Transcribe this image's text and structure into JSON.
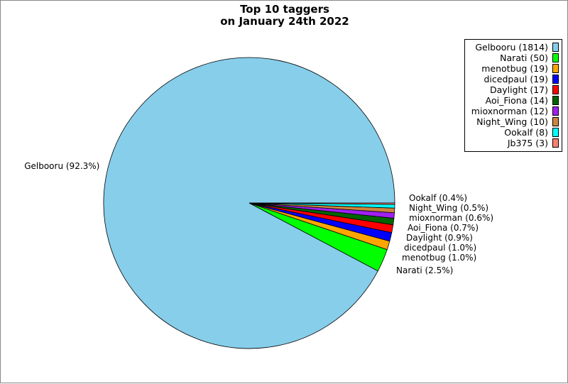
{
  "chart_data": {
    "type": "pie",
    "title": [
      "Top 10 taggers",
      "on January 24th 2022"
    ],
    "legend_position": "top-right",
    "slices": [
      {
        "name": "Gelbooru",
        "value": 1814,
        "percent_label": "Gelbooru (92.3%)",
        "legend_label": "Gelbooru (1814)",
        "color": "#87ceeb"
      },
      {
        "name": "Narati",
        "value": 50,
        "percent_label": "Narati (2.5%)",
        "legend_label": "Narati (50)",
        "color": "#00ff00"
      },
      {
        "name": "menotbug",
        "value": 19,
        "percent_label": "menotbug (1.0%)",
        "legend_label": "menotbug (19)",
        "color": "#ffa500"
      },
      {
        "name": "dicedpaul",
        "value": 19,
        "percent_label": "dicedpaul (1.0%)",
        "legend_label": "dicedpaul (19)",
        "color": "#0000ff"
      },
      {
        "name": "Daylight",
        "value": 17,
        "percent_label": "Daylight (0.9%)",
        "legend_label": "Daylight (17)",
        "color": "#ff0000"
      },
      {
        "name": "Aoi_Fiona",
        "value": 14,
        "percent_label": "Aoi_Fiona (0.7%)",
        "legend_label": "Aoi_Fiona (14)",
        "color": "#006400"
      },
      {
        "name": "mioxnorman",
        "value": 12,
        "percent_label": "mioxnorman (0.6%)",
        "legend_label": "mioxnorman (12)",
        "color": "#a020f0"
      },
      {
        "name": "Night_Wing",
        "value": 10,
        "percent_label": "Night_Wing (0.5%)",
        "legend_label": "Night_Wing (10)",
        "color": "#cd853f"
      },
      {
        "name": "Ookalf",
        "value": 8,
        "percent_label": "Ookalf (0.4%)",
        "legend_label": "Ookalf (8)",
        "color": "#00ffff"
      },
      {
        "name": "Jb375",
        "value": 3,
        "percent_label": "",
        "legend_label": "Jb375 (3)",
        "color": "#fa8072"
      }
    ]
  }
}
